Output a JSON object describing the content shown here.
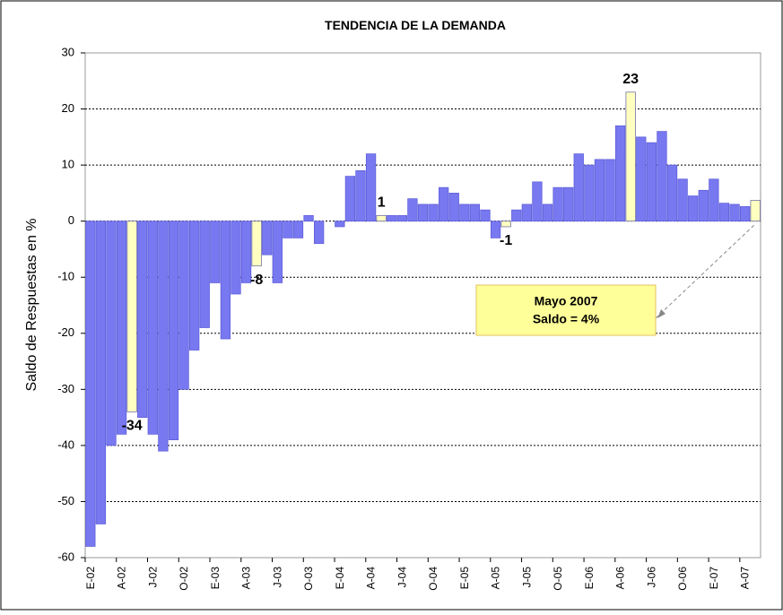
{
  "chart_data": {
    "type": "bar",
    "title": "TENDENCIA DE LA DEMANDA",
    "y_label": "Saldo de Respuestas en %",
    "categories": [
      "E-02",
      null,
      null,
      "A-02",
      null,
      null,
      "J-02",
      null,
      null,
      "O-02",
      null,
      null,
      "E-03",
      null,
      null,
      "A-03",
      null,
      null,
      "J-03",
      null,
      null,
      "O-03",
      null,
      null,
      "E-04",
      null,
      null,
      "A-04",
      null,
      null,
      "J-04",
      null,
      null,
      "O-04",
      null,
      null,
      "E-05",
      null,
      null,
      "A-05",
      null,
      null,
      "J-05",
      null,
      null,
      "O-05",
      null,
      null,
      "E-06",
      null,
      null,
      "A-06",
      null,
      null,
      "J-06",
      null,
      null,
      "O-06",
      null,
      null,
      "E-07",
      null,
      null,
      "A-07",
      null
    ],
    "values": [
      -58,
      -54,
      -40,
      -38,
      -34,
      -35,
      -38,
      -41,
      -39,
      -30,
      -23,
      -19,
      -11,
      -21,
      -13,
      -11,
      -8,
      -6,
      -11,
      -3,
      -3,
      1,
      -4,
      0,
      -1,
      8,
      9,
      12,
      1,
      1,
      1,
      4,
      3,
      3,
      6,
      5,
      3,
      3,
      2,
      -3,
      -1,
      2,
      3,
      7,
      3,
      6,
      6,
      12,
      10,
      11,
      11,
      17,
      23,
      15,
      14,
      16,
      10,
      7.5,
      4.5,
      5.5,
      7.5,
      3.2,
      3,
      2.6,
      3.7
    ],
    "value_labels": [
      null,
      null,
      null,
      null,
      "-34",
      null,
      null,
      null,
      null,
      null,
      null,
      null,
      null,
      null,
      null,
      null,
      "-8",
      null,
      null,
      null,
      null,
      null,
      null,
      null,
      null,
      null,
      null,
      null,
      "1",
      null,
      null,
      null,
      null,
      null,
      null,
      null,
      null,
      null,
      null,
      null,
      "-1",
      null,
      null,
      null,
      null,
      null,
      null,
      null,
      null,
      null,
      null,
      null,
      "23",
      null,
      null,
      null,
      null,
      null,
      null,
      null,
      null,
      null,
      null,
      null,
      null
    ],
    "colors": [
      "#7878f0",
      "#7878f0",
      "#7878f0",
      "#7878f0",
      "#ffffc0",
      "#7878f0",
      "#7878f0",
      "#7878f0",
      "#7878f0",
      "#7878f0",
      "#7878f0",
      "#7878f0",
      "#7878f0",
      "#7878f0",
      "#7878f0",
      "#7878f0",
      "#ffffc0",
      "#7878f0",
      "#7878f0",
      "#7878f0",
      "#7878f0",
      "#7878f0",
      "#7878f0",
      "#7878f0",
      "#7878f0",
      "#7878f0",
      "#7878f0",
      "#7878f0",
      "#ffffc0",
      "#7878f0",
      "#7878f0",
      "#7878f0",
      "#7878f0",
      "#7878f0",
      "#7878f0",
      "#7878f0",
      "#7878f0",
      "#7878f0",
      "#7878f0",
      "#7878f0",
      "#ffffc0",
      "#7878f0",
      "#7878f0",
      "#7878f0",
      "#7878f0",
      "#7878f0",
      "#7878f0",
      "#7878f0",
      "#7878f0",
      "#7878f0",
      "#7878f0",
      "#7878f0",
      "#ffffc0",
      "#7878f0",
      "#7878f0",
      "#7878f0",
      "#7878f0",
      "#7878f0",
      "#7878f0",
      "#7878f0",
      "#7878f0",
      "#7878f0",
      "#7878f0",
      "#7878f0",
      "#ffffc0"
    ],
    "ylim": [
      -60,
      30
    ],
    "yticks": [
      -60,
      -50,
      -40,
      -30,
      -20,
      -10,
      0,
      10,
      20,
      30
    ],
    "grid": true,
    "annotation": [
      "Mayo 2007",
      "Saldo = 4%"
    ]
  }
}
